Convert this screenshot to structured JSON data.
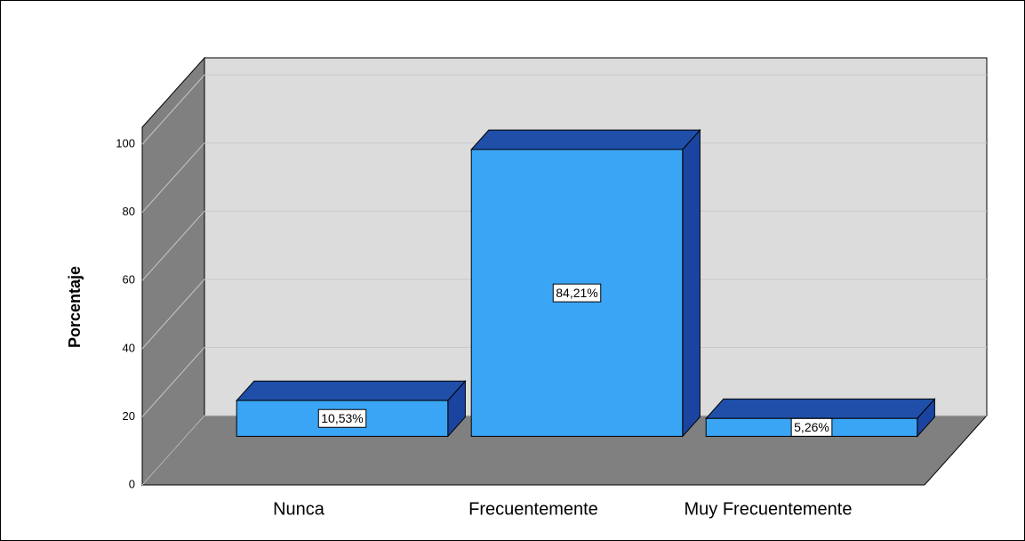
{
  "chart_data": {
    "type": "bar3d",
    "y_label": "Porcentaje",
    "categories": [
      "Nunca",
      "Frecuentemente",
      "Muy Frecuentemente"
    ],
    "values": [
      10.53,
      84.21,
      5.26
    ],
    "value_labels": [
      "10,53%",
      "84,21%",
      "5,26%"
    ],
    "color": "#3ba5f5",
    "ylim": [
      0,
      105
    ],
    "yticks": [
      0,
      20,
      40,
      60,
      80,
      100
    ],
    "grid": true
  }
}
